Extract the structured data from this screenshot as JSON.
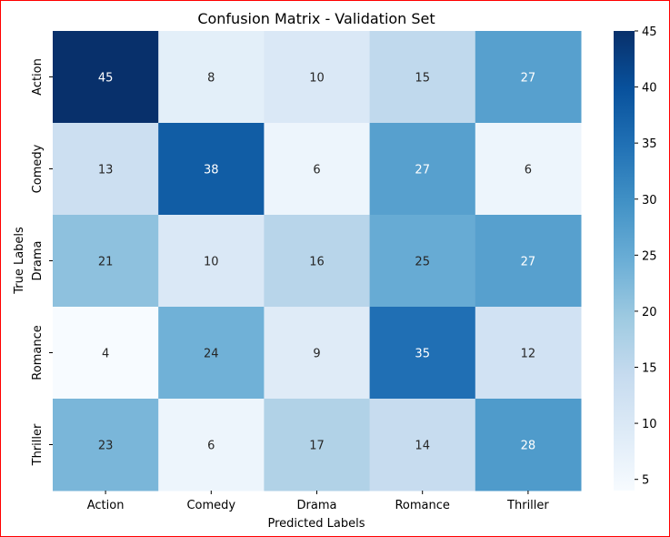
{
  "chart_data": {
    "type": "heatmap",
    "title": "Confusion Matrix - Validation Set",
    "xlabel": "Predicted Labels",
    "ylabel": "True Labels",
    "x_categories": [
      "Action",
      "Comedy",
      "Drama",
      "Romance",
      "Thriller"
    ],
    "y_categories": [
      "Action",
      "Comedy",
      "Drama",
      "Romance",
      "Thriller"
    ],
    "values": [
      [
        45,
        8,
        10,
        15,
        27
      ],
      [
        13,
        38,
        6,
        27,
        6
      ],
      [
        21,
        10,
        16,
        25,
        27
      ],
      [
        4,
        24,
        9,
        35,
        12
      ],
      [
        23,
        6,
        17,
        14,
        28
      ]
    ],
    "colormap": "Blues",
    "colorbar": {
      "range": [
        4,
        45
      ],
      "ticks": [
        5,
        10,
        15,
        20,
        25,
        30,
        35,
        40,
        45
      ]
    },
    "annotation_colors": {
      "dark_text": "#262626",
      "light_text": "#ffffff"
    },
    "frame_color": "#ff0000"
  }
}
